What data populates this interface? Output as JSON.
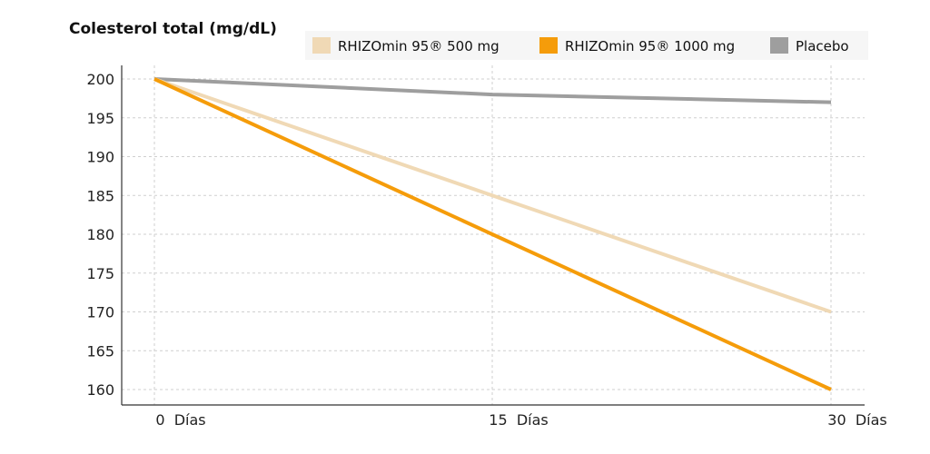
{
  "chart_data": {
    "type": "line",
    "title": "Colesterol total (mg/dL)",
    "x": [
      0,
      15,
      30
    ],
    "x_tick_labels": [
      "0  Días",
      "15  Días",
      "30  Días"
    ],
    "ylim": [
      158,
      202
    ],
    "y_ticks": [
      160,
      165,
      170,
      175,
      180,
      185,
      190,
      195,
      200
    ],
    "grid": true,
    "legend_position": "top-right",
    "series": [
      {
        "name": "RHIZOmin 95® 500 mg",
        "color": "#f0d9b5",
        "values": [
          200,
          185,
          170
        ]
      },
      {
        "name": "RHIZOmin 95® 1000 mg",
        "color": "#f59c0a",
        "values": [
          200,
          180,
          160
        ]
      },
      {
        "name": "Placebo",
        "color": "#9e9e9e",
        "values": [
          200,
          198,
          197
        ]
      }
    ]
  }
}
